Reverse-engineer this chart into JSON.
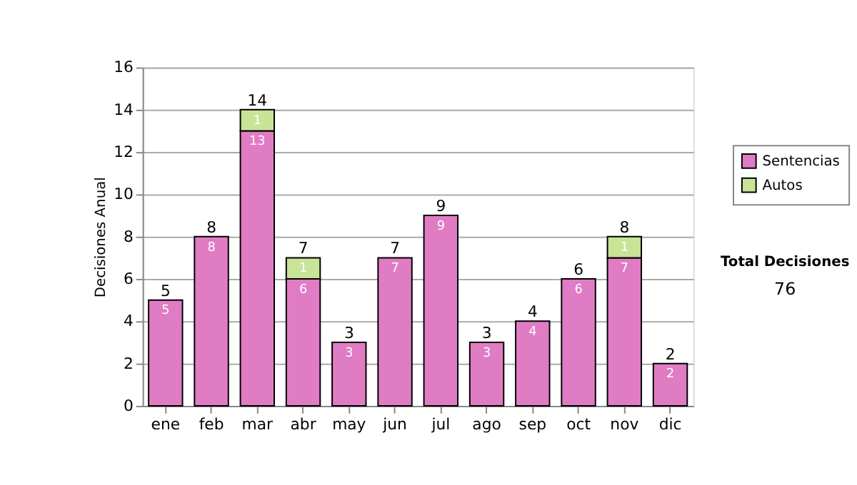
{
  "chart_data": {
    "type": "bar",
    "stacked": true,
    "ylabel": "Decisiones Anual",
    "categories": [
      "ene",
      "feb",
      "mar",
      "abr",
      "may",
      "jun",
      "jul",
      "ago",
      "sep",
      "oct",
      "nov",
      "dic"
    ],
    "series": [
      {
        "name": "Sentencias",
        "color": "#e07cc4",
        "values": [
          5,
          8,
          13,
          6,
          3,
          7,
          9,
          3,
          4,
          6,
          7,
          2
        ]
      },
      {
        "name": "Autos",
        "color": "#c8e496",
        "values": [
          null,
          null,
          1,
          1,
          null,
          null,
          null,
          null,
          null,
          null,
          1,
          null
        ]
      }
    ],
    "data_labels": true,
    "totals": [
      "5",
      "8",
      "14",
      "7",
      "3",
      "7",
      "9",
      "3",
      "4",
      "6",
      "8",
      "2"
    ],
    "ylim": [
      0,
      16
    ],
    "yticks": [
      0,
      2,
      4,
      6,
      8,
      10,
      12,
      14,
      16
    ],
    "grid": "y",
    "legend": "right",
    "annotations": [
      "Total Decisiones",
      "76"
    ]
  }
}
